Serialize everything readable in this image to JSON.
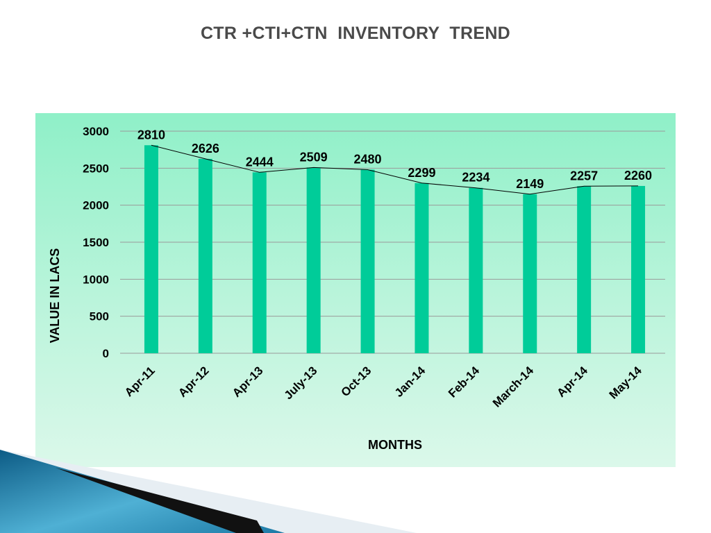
{
  "slide": {
    "title": "CTR +CTI+CTN  INVENTORY  TREND"
  },
  "colors": {
    "bar": "#00cc99",
    "line": "#000000",
    "gridline": "#9a9a9a",
    "title_text": "#4a4a4a"
  },
  "chart_data": {
    "type": "bar",
    "title": "",
    "xlabel": "MONTHS",
    "ylabel": "VALUE  IN LACS",
    "categories": [
      "Apr-11",
      "Apr-12",
      "Apr-13",
      "July-13",
      "Oct-13",
      "Jan-14",
      "Feb-14",
      "March-14",
      "Apr-14",
      "May-14"
    ],
    "values": [
      2810,
      2626,
      2444,
      2509,
      2480,
      2299,
      2234,
      2149,
      2257,
      2260
    ],
    "ylim": [
      0,
      3000
    ],
    "yticks": [
      0,
      500,
      1000,
      1500,
      2000,
      2500,
      3000
    ],
    "grid": true,
    "legend": "none",
    "overlay": "trend line connecting bar tops",
    "data_labels": true
  }
}
